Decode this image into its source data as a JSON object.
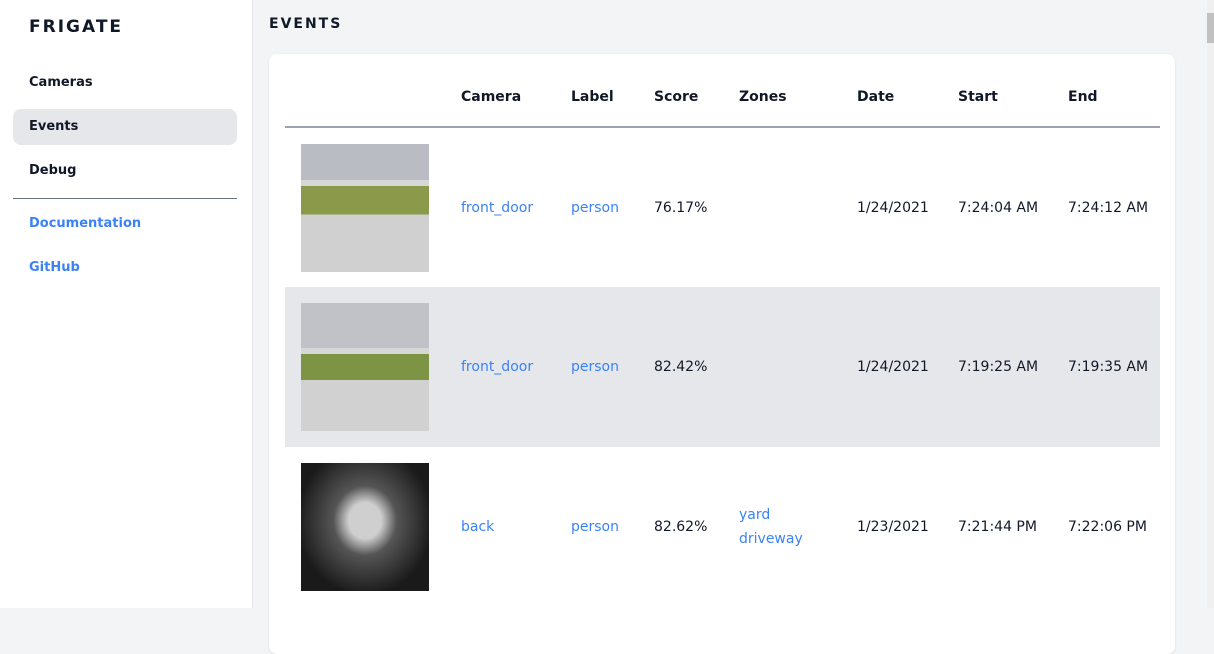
{
  "sidebar": {
    "brand": "FRIGATE",
    "items": [
      {
        "label": "Cameras"
      },
      {
        "label": "Events",
        "active": true
      },
      {
        "label": "Debug"
      }
    ],
    "links": [
      {
        "label": "Documentation"
      },
      {
        "label": "GitHub"
      }
    ]
  },
  "main": {
    "title": "EVENTS"
  },
  "table": {
    "headers": [
      "",
      "Camera",
      "Label",
      "Score",
      "Zones",
      "Date",
      "Start",
      "End"
    ],
    "rows": [
      {
        "camera": "front_door",
        "label": "person",
        "score": "76.17%",
        "zones": [
          "",
          ""
        ],
        "date": "1/24/2021",
        "start": "7:24:04 AM",
        "end": "7:24:12 AM"
      },
      {
        "camera": "front_door",
        "label": "person",
        "score": "82.42%",
        "zones": [
          "",
          ""
        ],
        "date": "1/24/2021",
        "start": "7:19:25 AM",
        "end": "7:19:35 AM"
      },
      {
        "camera": "back",
        "label": "person",
        "score": "82.62%",
        "zones": [
          "yard",
          "driveway"
        ],
        "date": "1/23/2021",
        "start": "7:21:44 PM",
        "end": "7:22:06 PM"
      }
    ]
  },
  "colors": {
    "accent": "#3b82f6",
    "active_bg": "#e5e7eb",
    "page_bg": "#f3f4f6"
  }
}
